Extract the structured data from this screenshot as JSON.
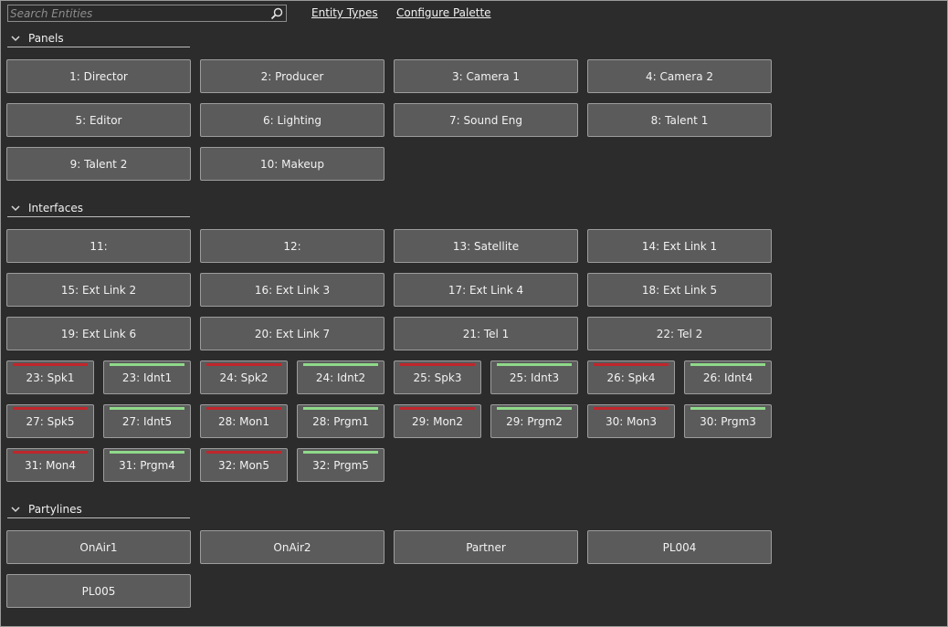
{
  "toolbar": {
    "search_placeholder": "Search Entities",
    "entity_types_label": "Entity Types",
    "configure_palette_label": "Configure Palette"
  },
  "sections": {
    "panels": {
      "label": "Panels",
      "items": [
        "1: Director",
        "2: Producer",
        "3: Camera 1",
        "4: Camera 2",
        "5: Editor",
        "6: Lighting",
        "7: Sound Eng",
        "8: Talent 1",
        "9: Talent 2",
        "10: Makeup"
      ]
    },
    "interfaces": {
      "label": "Interfaces",
      "items": [
        "11:",
        "12:",
        "13: Satellite",
        "14: Ext Link 1",
        "15: Ext Link 2",
        "16: Ext Link 3",
        "17: Ext Link 4",
        "18: Ext Link 5",
        "19: Ext Link 6",
        "20: Ext Link 7",
        "21: Tel 1",
        "22: Tel 2"
      ],
      "ports": [
        {
          "label": "23: Spk1",
          "indicator": "red"
        },
        {
          "label": "23: Idnt1",
          "indicator": "green"
        },
        {
          "label": "24: Spk2",
          "indicator": "red"
        },
        {
          "label": "24: Idnt2",
          "indicator": "green"
        },
        {
          "label": "25: Spk3",
          "indicator": "red"
        },
        {
          "label": "25: Idnt3",
          "indicator": "green"
        },
        {
          "label": "26: Spk4",
          "indicator": "red"
        },
        {
          "label": "26: Idnt4",
          "indicator": "green"
        },
        {
          "label": "27: Spk5",
          "indicator": "red"
        },
        {
          "label": "27: Idnt5",
          "indicator": "green"
        },
        {
          "label": "28: Mon1",
          "indicator": "red"
        },
        {
          "label": "28: Prgm1",
          "indicator": "green"
        },
        {
          "label": "29: Mon2",
          "indicator": "red"
        },
        {
          "label": "29: Prgm2",
          "indicator": "green"
        },
        {
          "label": "30: Mon3",
          "indicator": "red"
        },
        {
          "label": "30: Prgm3",
          "indicator": "green"
        },
        {
          "label": "31: Mon4",
          "indicator": "red"
        },
        {
          "label": "31: Prgm4",
          "indicator": "green"
        },
        {
          "label": "32: Mon5",
          "indicator": "red"
        },
        {
          "label": "32: Prgm5",
          "indicator": "green"
        }
      ]
    },
    "partylines": {
      "label": "Partylines",
      "items": [
        "OnAir1",
        "OnAir2",
        "Partner",
        "PL004",
        "PL005"
      ]
    }
  },
  "colors": {
    "background": "#2c2c2c",
    "button": "#5b5b5b",
    "indicator_red": "#c0262c",
    "indicator_green": "#8fd98a"
  }
}
